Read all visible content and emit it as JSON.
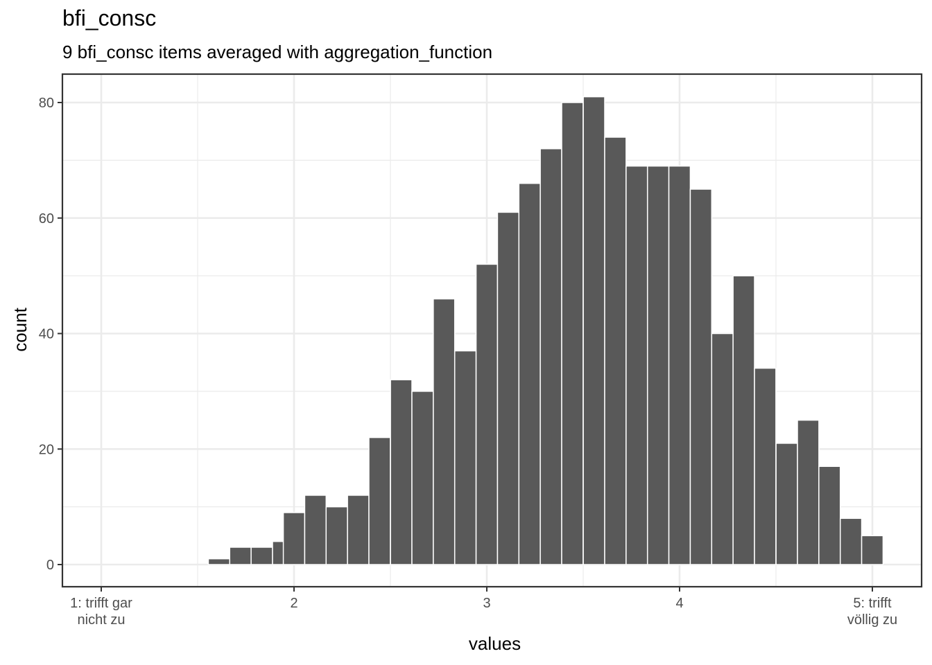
{
  "title": "bfi_consc",
  "subtitle": "9 bfi_consc items averaged with aggregation_function",
  "chart_data": {
    "type": "bar",
    "title": "bfi_consc",
    "subtitle": "9 bfi_consc items averaged with aggregation_function",
    "xlabel": "values",
    "ylabel": "count",
    "bin_width": 0.111,
    "bins": [
      {
        "x": 1.611,
        "count": 1
      },
      {
        "x": 1.722,
        "count": 3
      },
      {
        "x": 1.833,
        "count": 3
      },
      {
        "x": 1.944,
        "count": 4
      },
      {
        "x": 2.0,
        "count": 9
      },
      {
        "x": 2.111,
        "count": 12
      },
      {
        "x": 2.222,
        "count": 10
      },
      {
        "x": 2.333,
        "count": 12
      },
      {
        "x": 2.444,
        "count": 22
      },
      {
        "x": 2.556,
        "count": 32
      },
      {
        "x": 2.667,
        "count": 30
      },
      {
        "x": 2.778,
        "count": 46
      },
      {
        "x": 2.889,
        "count": 37
      },
      {
        "x": 3.0,
        "count": 52
      },
      {
        "x": 3.111,
        "count": 61
      },
      {
        "x": 3.222,
        "count": 66
      },
      {
        "x": 3.333,
        "count": 72
      },
      {
        "x": 3.444,
        "count": 80
      },
      {
        "x": 3.556,
        "count": 81
      },
      {
        "x": 3.667,
        "count": 74
      },
      {
        "x": 3.778,
        "count": 69
      },
      {
        "x": 3.889,
        "count": 69
      },
      {
        "x": 4.0,
        "count": 69
      },
      {
        "x": 4.111,
        "count": 65
      },
      {
        "x": 4.222,
        "count": 40
      },
      {
        "x": 4.333,
        "count": 50
      },
      {
        "x": 4.444,
        "count": 34
      },
      {
        "x": 4.556,
        "count": 21
      },
      {
        "x": 4.667,
        "count": 25
      },
      {
        "x": 4.778,
        "count": 17
      },
      {
        "x": 4.889,
        "count": 8
      },
      {
        "x": 5.0,
        "count": 5
      }
    ],
    "xlim": [
      0.8,
      5.25
    ],
    "ylim": [
      -4.5,
      85
    ],
    "x_ticks": [
      {
        "value": 1,
        "lines": [
          "1: trifft gar",
          "nicht zu"
        ]
      },
      {
        "value": 2,
        "lines": [
          "2"
        ]
      },
      {
        "value": 3,
        "lines": [
          "3"
        ]
      },
      {
        "value": 4,
        "lines": [
          "4"
        ]
      },
      {
        "value": 5,
        "lines": [
          "5: trifft",
          "völlig zu"
        ]
      }
    ],
    "y_ticks": [
      0,
      20,
      40,
      60,
      80
    ],
    "bar_color": "#595959",
    "grid": true
  }
}
